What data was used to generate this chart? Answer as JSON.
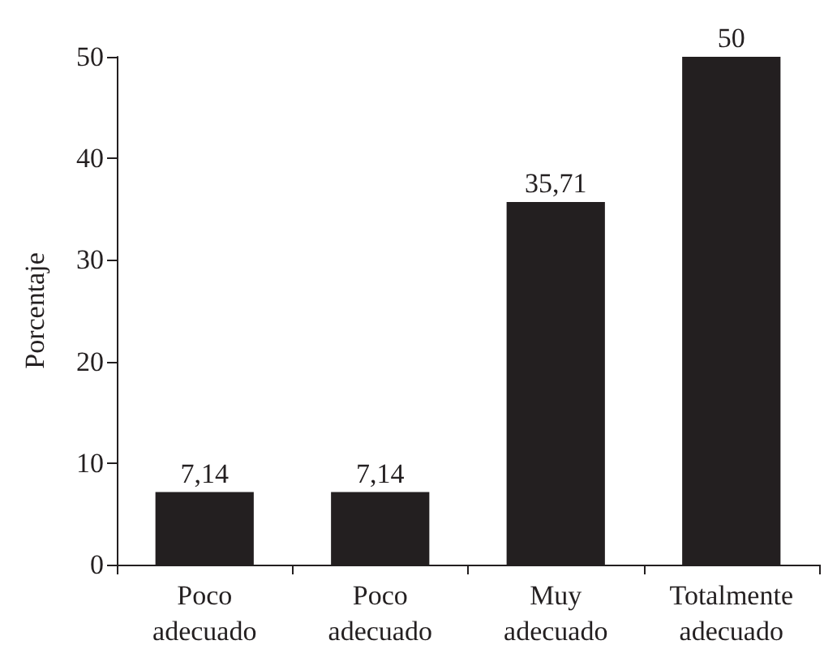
{
  "chart_data": {
    "type": "bar",
    "ylabel": "Porcentaje",
    "categories": [
      "Poco adecuado",
      "Poco adecuado",
      "Muy adecuado",
      "Totalmente adecuado"
    ],
    "values": [
      7.14,
      7.14,
      35.71,
      50
    ],
    "value_labels": [
      "7,14",
      "7,14",
      "35,71",
      "50"
    ],
    "color": "#231f20",
    "ylim": [
      0,
      50
    ],
    "yticks": [
      0,
      10,
      20,
      30,
      40,
      50
    ]
  }
}
